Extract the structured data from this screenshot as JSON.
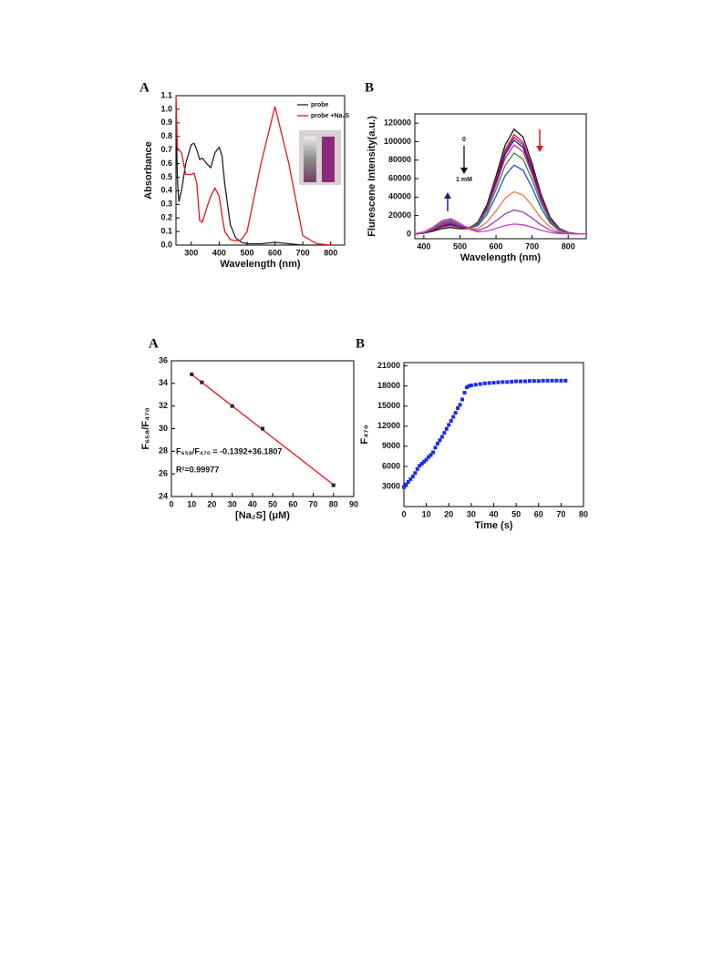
{
  "chart_data": [
    {
      "type": "line",
      "panel": "A",
      "x_label": "Wavelength (nm)",
      "y_label": "Absorbance",
      "xlim": [
        245,
        850
      ],
      "xticks": [
        300,
        400,
        500,
        600,
        700,
        800
      ],
      "ylim": [
        0,
        1.1
      ],
      "yticks": [
        {
          "value": 0,
          "label": "0.0"
        },
        0.1,
        0.2,
        0.3,
        0.4,
        0.5,
        0.6,
        0.7,
        0.8,
        0.9,
        {
          "value": 1,
          "label": "1.0"
        },
        1.1
      ],
      "legend": "upper right",
      "x": [
        245,
        250,
        255,
        265,
        280,
        300,
        310,
        320,
        330,
        340,
        355,
        370,
        385,
        400,
        410,
        420,
        440,
        460,
        480,
        500,
        550,
        600,
        650,
        700,
        750,
        800
      ],
      "series": [
        {
          "name": "probe",
          "color": "#222222",
          "values": [
            1.05,
            0.5,
            0.32,
            0.4,
            0.6,
            0.74,
            0.75,
            0.7,
            0.63,
            0.64,
            0.6,
            0.57,
            0.68,
            0.72,
            0.66,
            0.45,
            0.15,
            0.05,
            0.02,
            0.01,
            0.01,
            0.02,
            0.01,
            0.0,
            0.0,
            0.0
          ]
        },
        {
          "name": "probe +Na₂S",
          "color": "#e8141c",
          "values": [
            1.1,
            0.72,
            0.7,
            0.68,
            0.52,
            0.52,
            0.53,
            0.45,
            0.18,
            0.17,
            0.27,
            0.36,
            0.42,
            0.36,
            0.22,
            0.1,
            0.04,
            0.03,
            0.04,
            0.1,
            0.6,
            1.02,
            0.6,
            0.07,
            0.01,
            0.0
          ]
        }
      ]
    },
    {
      "type": "line",
      "panel": "B",
      "x_label": "Wavelength (nm)",
      "y_label": "Flurescene Intensity(a.u.)",
      "xlim": [
        375,
        850
      ],
      "xticks": [
        400,
        500,
        600,
        700,
        800
      ],
      "ylim": [
        -5000,
        130000
      ],
      "yticks": [
        0,
        20000,
        40000,
        60000,
        80000,
        100000,
        120000
      ],
      "annotations": [
        "0",
        "1 mM"
      ],
      "x": [
        375,
        400,
        425,
        450,
        475,
        500,
        525,
        550,
        575,
        600,
        625,
        650,
        675,
        700,
        725,
        750,
        775,
        800,
        825,
        850
      ],
      "series": [
        {
          "color": "#111111",
          "values": [
            200,
            900,
            3000,
            6000,
            7100,
            5700,
            5900,
            13000,
            32000,
            62700,
            95800,
            113400,
            104900,
            76400,
            42800,
            18200,
            6400,
            1700,
            300,
            0
          ]
        },
        {
          "color": "#e0102a",
          "values": [
            200,
            1200,
            3900,
            7700,
            9100,
            7100,
            6300,
            12500,
            30300,
            59400,
            90700,
            107500,
            99400,
            72400,
            40500,
            17300,
            6000,
            1600,
            300,
            0
          ]
        },
        {
          "color": "#7a1fa0",
          "values": [
            300,
            1400,
            4400,
            8500,
            10100,
            7700,
            6500,
            12300,
            29500,
            57800,
            88200,
            104500,
            96600,
            70400,
            39400,
            16800,
            5900,
            1600,
            300,
            0
          ]
        },
        {
          "color": "#1a237e",
          "values": [
            300,
            1500,
            4800,
            9400,
            11000,
            8400,
            6700,
            12000,
            28700,
            56100,
            85700,
            101500,
            93800,
            68300,
            38300,
            16300,
            5700,
            1500,
            300,
            0
          ]
        },
        {
          "color": "#d81b8a",
          "values": [
            300,
            1600,
            5200,
            10200,
            12000,
            9100,
            6800,
            11500,
            27300,
            53400,
            81500,
            96500,
            89200,
            65000,
            36400,
            15500,
            5400,
            1500,
            300,
            0
          ]
        },
        {
          "color": "#2e8b2e",
          "values": [
            300,
            1800,
            5700,
            11100,
            13000,
            9700,
            6800,
            10600,
            24800,
            48400,
            73900,
            87600,
            81000,
            59000,
            33000,
            14100,
            4900,
            1300,
            300,
            0
          ]
        },
        {
          "color": "#1f4fd0",
          "values": [
            400,
            1900,
            6100,
            11900,
            14000,
            10300,
            6600,
            9200,
            21200,
            41300,
            63000,
            74600,
            69000,
            50300,
            28100,
            12000,
            4200,
            1100,
            200,
            0
          ]
        },
        {
          "color": "#f07840",
          "values": [
            400,
            2000,
            6500,
            12800,
            14900,
            10700,
            5900,
            6100,
            13000,
            25300,
            38600,
            45800,
            42300,
            30800,
            17300,
            7400,
            2600,
            700,
            100,
            0
          ]
        },
        {
          "color": "#9b3fb5",
          "values": [
            400,
            2200,
            7000,
            13600,
            15900,
            11200,
            5500,
            4000,
            7500,
            14300,
            21800,
            25900,
            23900,
            17400,
            9800,
            4200,
            1500,
            400,
            100,
            0
          ]
        },
        {
          "color": "#c83cc8",
          "values": [
            400,
            2300,
            7400,
            14500,
            16800,
            11800,
            5300,
            2400,
            3300,
            6100,
            9200,
            10900,
            10100,
            7400,
            4100,
            1800,
            600,
            200,
            0,
            0
          ]
        }
      ]
    },
    {
      "type": "scatter",
      "panel": "A",
      "x_label": "[Na₂S] (μM)",
      "y_label": "F₆₅₈/F₄₇₀",
      "xlim": [
        0,
        90
      ],
      "xticks": [
        0,
        10,
        20,
        30,
        40,
        50,
        60,
        70,
        80,
        90
      ],
      "ylim": [
        24,
        36
      ],
      "yticks": [
        24,
        26,
        28,
        30,
        32,
        34,
        36
      ],
      "annotations": [
        "F₆₅₈/F₄₇₀ = -0.1392+36.1807",
        "R²=0.99977"
      ],
      "x": [
        10,
        15,
        30,
        45,
        80
      ],
      "values": [
        34.8,
        34.1,
        32.0,
        30.0,
        25.0
      ],
      "color": "#222222",
      "fit": {
        "x": [
          10,
          80
        ],
        "values": [
          34.79,
          25.04
        ],
        "color": "#e8141c"
      }
    },
    {
      "type": "scatter",
      "panel": "B",
      "x_label": "Time (s)",
      "y_label": "F₄₇₀",
      "xlim": [
        0,
        80
      ],
      "xticks": [
        0,
        10,
        20,
        30,
        40,
        50,
        60,
        70,
        80
      ],
      "ylim": [
        0,
        21500
      ],
      "yticks": [
        3000,
        6000,
        9000,
        12000,
        15000,
        18000,
        21000
      ],
      "color": "#1a2cf0",
      "x": [
        0,
        1,
        2,
        3,
        4,
        5,
        6,
        7,
        8,
        9,
        10,
        11,
        12,
        13,
        14,
        15,
        16,
        17,
        18,
        19,
        20,
        21,
        22,
        23,
        24,
        25,
        26,
        27,
        28,
        29,
        30,
        32,
        34,
        36,
        38,
        40,
        42,
        44,
        46,
        48,
        50,
        52,
        54,
        56,
        58,
        60,
        62,
        64,
        66,
        68,
        70,
        72
      ],
      "values": [
        2900,
        3300,
        3700,
        4100,
        4500,
        5000,
        5600,
        6100,
        6400,
        6700,
        7000,
        7400,
        7700,
        8100,
        8800,
        9400,
        9900,
        10400,
        11000,
        11600,
        12200,
        12800,
        13400,
        14000,
        14700,
        15200,
        16000,
        17000,
        17800,
        18000,
        18100,
        18200,
        18300,
        18400,
        18450,
        18500,
        18550,
        18600,
        18600,
        18650,
        18700,
        18700,
        18700,
        18750,
        18750,
        18750,
        18800,
        18800,
        18800,
        18800,
        18800,
        18800
      ]
    }
  ]
}
